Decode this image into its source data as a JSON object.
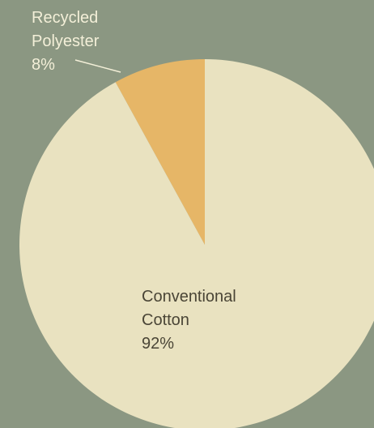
{
  "chart_data": {
    "type": "pie",
    "title": "",
    "slices": [
      {
        "label_lines": [
          "Recycled",
          "Polyester"
        ],
        "value": 8,
        "value_label": "8%",
        "color": "#e6b667"
      },
      {
        "label_lines": [
          "Conventional",
          "Cotton"
        ],
        "value": 92,
        "value_label": "92%",
        "color": "#e9e2c0"
      }
    ],
    "start_angle": "12 o'clock",
    "direction": "counter-clockwise",
    "background_color": "#8b9782",
    "leader_line_color": "#f3efd8"
  }
}
